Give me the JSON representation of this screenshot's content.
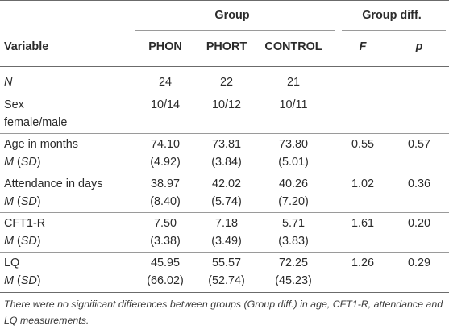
{
  "header": {
    "group": "Group",
    "group_diff": "Group diff.",
    "variable": "Variable",
    "phon": "PHON",
    "phort": "PHORT",
    "control": "CONTROL",
    "f": "F",
    "p": "p"
  },
  "rows": [
    {
      "line1": "N",
      "line1_italic": true,
      "line2": "",
      "phon1": "24",
      "phort1": "22",
      "control1": "21",
      "phon2": "",
      "phort2": "",
      "control2": "",
      "f": "",
      "p": ""
    },
    {
      "line1": "Sex",
      "line2": "female/male",
      "phon1": "10/14",
      "phort1": "10/12",
      "control1": "10/11",
      "phon2": "",
      "phort2": "",
      "control2": "",
      "f": "",
      "p": ""
    },
    {
      "line1": "Age in months",
      "line2_m": "M",
      "line2_sd": "SD",
      "phon1": "74.10",
      "phort1": "73.81",
      "control1": "73.80",
      "phon2": "(4.92)",
      "phort2": "(3.84)",
      "control2": "(5.01)",
      "f": "0.55",
      "p": "0.57"
    },
    {
      "line1": "Attendance in days",
      "line2_m": "M",
      "line2_sd": "SD",
      "phon1": "38.97",
      "phort1": "42.02",
      "control1": "40.26",
      "phon2": "(8.40)",
      "phort2": "(5.74)",
      "control2": "(7.20)",
      "f": "1.02",
      "p": "0.36"
    },
    {
      "line1": "CFT1-R",
      "line2_m": "M",
      "line2_sd": "SD",
      "phon1": "7.50",
      "phort1": "7.18",
      "control1": "5.71",
      "phon2": "(3.38)",
      "phort2": "(3.49)",
      "control2": "(3.83)",
      "f": "1.61",
      "p": "0.20"
    },
    {
      "line1": "LQ",
      "line2_m": "M",
      "line2_sd": "SD",
      "phon1": "45.95",
      "phort1": "55.57",
      "control1": "72.25",
      "phon2": "(66.02)",
      "phort2": "(52.74)",
      "control2": "(45.23)",
      "f": "1.26",
      "p": "0.29"
    }
  ],
  "footnote": "There were no significant differences between groups (Group diff.) in age, CFT1-R, attendance and LQ measurements.",
  "colors": {
    "shade": "#e6ebf0",
    "rule": "#6b6b6b"
  }
}
